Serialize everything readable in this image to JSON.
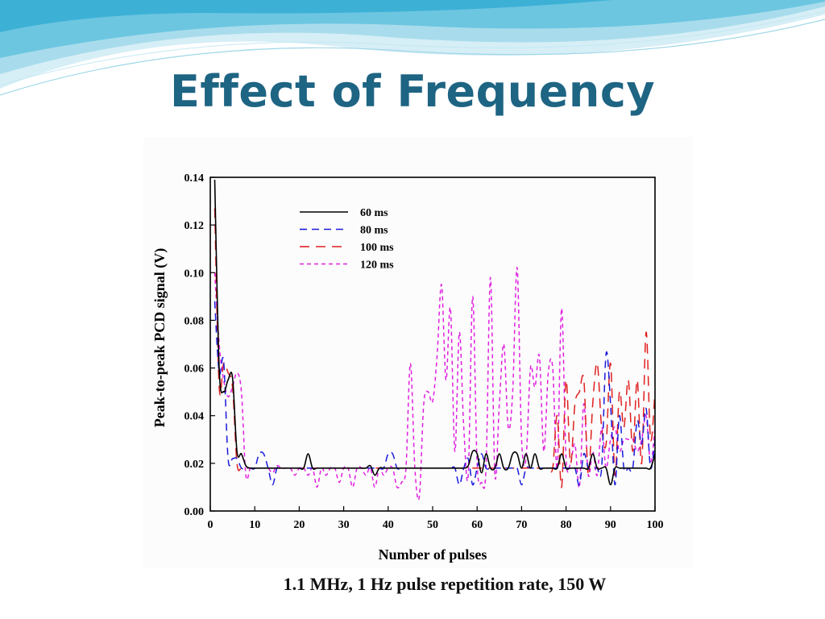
{
  "slide": {
    "title": "Effect of Frequency",
    "caption": "1.1 MHz, 1 Hz pulse repetition rate, 150 W"
  },
  "theme": {
    "title_color": "#1e6483",
    "wave_color": "#58c4dc"
  },
  "chart_data": {
    "type": "line",
    "title": "",
    "xlabel": "Number of pulses",
    "ylabel": "Peak-to-peak PCD signal  (V)",
    "xlim": [
      0,
      100
    ],
    "ylim": [
      0,
      0.14
    ],
    "xticks": [
      0,
      10,
      20,
      30,
      40,
      50,
      60,
      70,
      80,
      90,
      100
    ],
    "yticks": [
      0.0,
      0.02,
      0.04,
      0.06,
      0.08,
      0.1,
      0.12,
      0.14
    ],
    "xtick_labels": [
      "0",
      "10",
      "20",
      "30",
      "40",
      "50",
      "60",
      "70",
      "80",
      "90",
      "100"
    ],
    "ytick_labels": [
      "0.00",
      "0.02",
      "0.04",
      "0.06",
      "0.08",
      "0.10",
      "0.12",
      "0.14"
    ],
    "grid": false,
    "legend_position": "top-center",
    "x": [
      1,
      2,
      3,
      4,
      5,
      6,
      7,
      8,
      9,
      10,
      11,
      12,
      13,
      14,
      15,
      16,
      17,
      18,
      19,
      20,
      21,
      22,
      23,
      24,
      25,
      26,
      27,
      28,
      29,
      30,
      31,
      32,
      33,
      34,
      35,
      36,
      37,
      38,
      39,
      40,
      41,
      42,
      43,
      44,
      45,
      46,
      47,
      48,
      49,
      50,
      51,
      52,
      53,
      54,
      55,
      56,
      57,
      58,
      59,
      60,
      61,
      62,
      63,
      64,
      65,
      66,
      67,
      68,
      69,
      70,
      71,
      72,
      73,
      74,
      75,
      76,
      77,
      78,
      79,
      80,
      81,
      82,
      83,
      84,
      85,
      86,
      87,
      88,
      89,
      90,
      91,
      92,
      93,
      94,
      95,
      96,
      97,
      98,
      99,
      100
    ],
    "series": [
      {
        "name": "60 ms",
        "color": "#000000",
        "dash": "solid",
        "values": [
          0.139,
          0.06,
          0.05,
          0.055,
          0.056,
          0.025,
          0.024,
          0.019,
          0.018,
          0.018,
          0.018,
          0.018,
          0.018,
          0.018,
          0.018,
          0.018,
          0.018,
          0.018,
          0.018,
          0.018,
          0.018,
          0.024,
          0.018,
          0.018,
          0.018,
          0.018,
          0.018,
          0.018,
          0.018,
          0.018,
          0.018,
          0.018,
          0.018,
          0.018,
          0.018,
          0.019,
          0.015,
          0.018,
          0.018,
          0.018,
          0.018,
          0.018,
          0.018,
          0.018,
          0.018,
          0.018,
          0.018,
          0.018,
          0.018,
          0.018,
          0.018,
          0.018,
          0.018,
          0.018,
          0.018,
          0.018,
          0.018,
          0.019,
          0.025,
          0.024,
          0.016,
          0.024,
          0.018,
          0.018,
          0.024,
          0.018,
          0.018,
          0.024,
          0.024,
          0.018,
          0.024,
          0.018,
          0.024,
          0.018,
          0.018,
          0.018,
          0.018,
          0.018,
          0.024,
          0.018,
          0.018,
          0.018,
          0.018,
          0.018,
          0.018,
          0.024,
          0.018,
          0.018,
          0.018,
          0.011,
          0.018,
          0.018,
          0.018,
          0.018,
          0.018,
          0.018,
          0.018,
          0.018,
          0.018,
          0.024
        ]
      },
      {
        "name": "80 ms",
        "color": "#1a1adc",
        "dash": "9,6",
        "values": [
          0.088,
          0.058,
          0.063,
          0.022,
          0.022,
          0.022,
          0.018,
          0.018,
          0.018,
          0.018,
          0.024,
          0.024,
          0.018,
          0.011,
          0.018,
          0.018,
          0.018,
          0.018,
          0.018,
          0.018,
          0.018,
          0.018,
          0.018,
          0.018,
          0.018,
          0.018,
          0.018,
          0.018,
          0.018,
          0.018,
          0.018,
          0.018,
          0.018,
          0.018,
          0.018,
          0.018,
          0.018,
          0.018,
          0.018,
          0.024,
          0.024,
          0.018,
          0.018,
          0.018,
          0.018,
          0.018,
          0.018,
          0.018,
          0.018,
          0.018,
          0.018,
          0.018,
          0.018,
          0.018,
          0.018,
          0.011,
          0.018,
          0.022,
          0.011,
          0.018,
          0.024,
          0.018,
          0.018,
          0.018,
          0.018,
          0.018,
          0.018,
          0.018,
          0.018,
          0.011,
          0.018,
          0.018,
          0.018,
          0.018,
          0.018,
          0.018,
          0.018,
          0.018,
          0.018,
          0.018,
          0.018,
          0.018,
          0.011,
          0.024,
          0.018,
          0.018,
          0.018,
          0.018,
          0.066,
          0.045,
          0.011,
          0.04,
          0.018,
          0.018,
          0.018,
          0.038,
          0.028,
          0.043,
          0.018,
          0.03
        ]
      },
      {
        "name": "100 ms",
        "color": "#e02020",
        "dash": "12,8",
        "values": [
          0.127,
          0.052,
          0.062,
          0.058,
          0.052,
          0.02,
          0.018,
          0.018,
          0.018,
          0.018,
          0.018,
          0.018,
          0.018,
          0.018,
          0.018,
          0.018,
          0.018,
          0.018,
          0.018,
          0.018,
          0.018,
          0.018,
          0.018,
          0.018,
          0.018,
          0.018,
          0.018,
          0.018,
          0.018,
          0.018,
          0.018,
          0.018,
          0.018,
          0.018,
          0.018,
          0.018,
          0.018,
          0.018,
          0.018,
          0.018,
          0.018,
          0.018,
          0.018,
          0.018,
          0.018,
          0.018,
          0.018,
          0.018,
          0.018,
          0.018,
          0.018,
          0.018,
          0.018,
          0.018,
          0.018,
          0.018,
          0.018,
          0.018,
          0.018,
          0.018,
          0.018,
          0.018,
          0.018,
          0.018,
          0.018,
          0.018,
          0.018,
          0.018,
          0.018,
          0.018,
          0.018,
          0.018,
          0.018,
          0.018,
          0.018,
          0.018,
          0.018,
          0.04,
          0.01,
          0.055,
          0.02,
          0.045,
          0.05,
          0.055,
          0.015,
          0.045,
          0.062,
          0.035,
          0.028,
          0.062,
          0.015,
          0.05,
          0.035,
          0.055,
          0.025,
          0.055,
          0.02,
          0.075,
          0.03,
          0.05
        ]
      },
      {
        "name": "120 ms",
        "color": "#e020e0",
        "dash": "5,4",
        "values": [
          0.1,
          0.07,
          0.055,
          0.048,
          0.052,
          0.058,
          0.05,
          0.015,
          0.018,
          0.018,
          0.018,
          0.018,
          0.018,
          0.016,
          0.019,
          0.018,
          0.018,
          0.018,
          0.015,
          0.018,
          0.018,
          0.015,
          0.018,
          0.01,
          0.018,
          0.015,
          0.018,
          0.018,
          0.012,
          0.018,
          0.018,
          0.01,
          0.018,
          0.018,
          0.015,
          0.018,
          0.01,
          0.018,
          0.015,
          0.018,
          0.018,
          0.01,
          0.012,
          0.018,
          0.062,
          0.018,
          0.006,
          0.045,
          0.05,
          0.046,
          0.065,
          0.095,
          0.055,
          0.085,
          0.025,
          0.075,
          0.035,
          0.015,
          0.09,
          0.02,
          0.012,
          0.018,
          0.098,
          0.015,
          0.045,
          0.07,
          0.035,
          0.05,
          0.102,
          0.03,
          0.022,
          0.06,
          0.052,
          0.065,
          0.025,
          0.058,
          0.06,
          0.018,
          0.085,
          0.022,
          0.02,
          0.028,
          0.01,
          0.045,
          0.015,
          0.025,
          0.015,
          0.035,
          0.018,
          0.03,
          0.035,
          0.025,
          0.03,
          0.03,
          0.03,
          0.025,
          0.03,
          0.04,
          0.02,
          0.035
        ]
      }
    ]
  }
}
